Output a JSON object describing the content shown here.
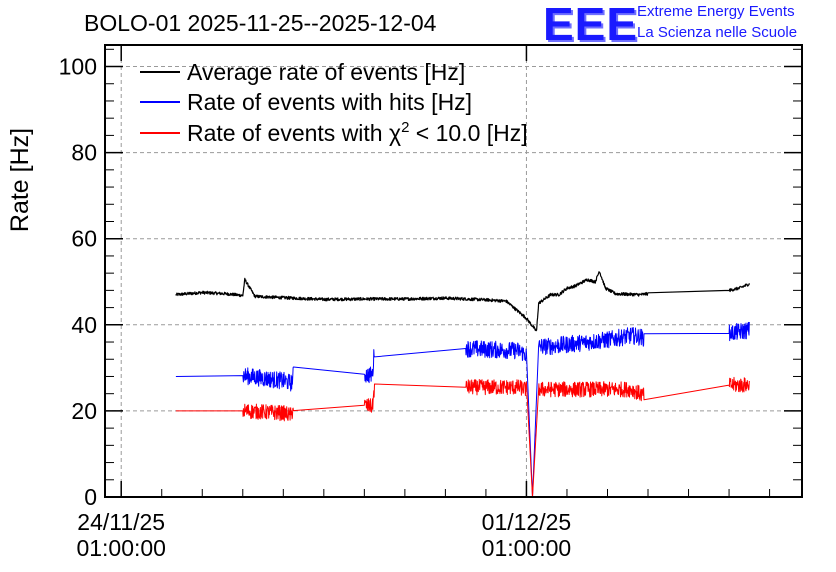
{
  "header": {
    "title": "BOLO-01 2025-11-25--2025-12-04",
    "logo_mark": "EEE",
    "logo_line1": "Extreme Energy Events",
    "logo_line2": "La Scienza nelle Scuole"
  },
  "chart_data": {
    "type": "line",
    "ylabel": "Rate [Hz]",
    "ylim": [
      0,
      105
    ],
    "yticks": [
      0,
      20,
      40,
      60,
      80,
      100
    ],
    "xlim_days": [
      -0.4,
      16.8
    ],
    "xticks": [
      {
        "day": 0,
        "label_date": "24/11/25",
        "label_time": "01:00:00"
      },
      {
        "day": 10,
        "label_date": "01/12/25",
        "label_time": "01:00:00"
      }
    ],
    "grid": true,
    "legend": {
      "position": "top-left",
      "entries": [
        {
          "label_main": "Average rate of events [Hz]",
          "color": "#000000"
        },
        {
          "label_main": "Rate of events with hits [Hz]",
          "color": "#0000ff"
        },
        {
          "label_pre": "Rate of events with ",
          "symbol": "χ",
          "sup": "2",
          "label_post": " < 10.0 [Hz]",
          "color": "#ff0000"
        }
      ]
    },
    "series": [
      {
        "name": "Average rate of events [Hz]",
        "color": "#000000",
        "noise": 0.35,
        "x": [
          1.35,
          2.0,
          2.6,
          3.0,
          3.05,
          3.3,
          4.0,
          5.0,
          6.0,
          7.0,
          8.0,
          9.0,
          9.5,
          10.0,
          10.25,
          10.3,
          10.6,
          10.8,
          11.0,
          11.2,
          11.5,
          11.7,
          11.8,
          11.95,
          12.2,
          12.8,
          13.0,
          15.0,
          15.25,
          15.5
        ],
        "y": [
          47.0,
          47.5,
          47.2,
          46.8,
          50.5,
          46.6,
          46.3,
          45.9,
          46.0,
          46.0,
          46.2,
          45.8,
          45.5,
          41.5,
          38.5,
          45.0,
          47.0,
          47.0,
          48.5,
          49.0,
          50.5,
          50.0,
          52.5,
          48.5,
          47.2,
          47.0,
          47.2,
          48.0,
          48.5,
          49.5
        ]
      },
      {
        "name": "Rate of events with hits [Hz]",
        "color": "#0000ff",
        "noise": 2.0,
        "x": [
          1.35,
          3.0,
          4.0,
          4.2,
          4.25,
          6.0,
          6.2,
          6.25,
          8.5,
          9.8,
          10.0,
          10.15,
          10.3,
          10.6,
          12.0,
          12.6,
          12.9,
          15.0,
          15.5
        ],
        "y": [
          28.0,
          28.2,
          27.0,
          26.5,
          28.5,
          28.5,
          28.3,
          34.5,
          34.5,
          34.0,
          33.0,
          0.0,
          35.0,
          35.0,
          36.5,
          37.5,
          37.0,
          38.0,
          38.8
        ]
      },
      {
        "name": "Rate of events with χ2 < 10.0 [Hz]",
        "color": "#ff0000",
        "noise": 1.8,
        "x": [
          1.35,
          3.0,
          4.0,
          4.2,
          4.25,
          6.0,
          6.2,
          6.25,
          8.5,
          9.8,
          10.0,
          10.15,
          10.3,
          10.6,
          12.0,
          12.6,
          12.9,
          15.0,
          15.5
        ],
        "y": [
          20.0,
          20.0,
          19.5,
          19.0,
          21.0,
          21.3,
          21.0,
          25.5,
          25.5,
          25.5,
          25.0,
          0.0,
          25.0,
          25.0,
          25.0,
          25.0,
          23.5,
          26.0,
          26.0
        ]
      }
    ]
  }
}
